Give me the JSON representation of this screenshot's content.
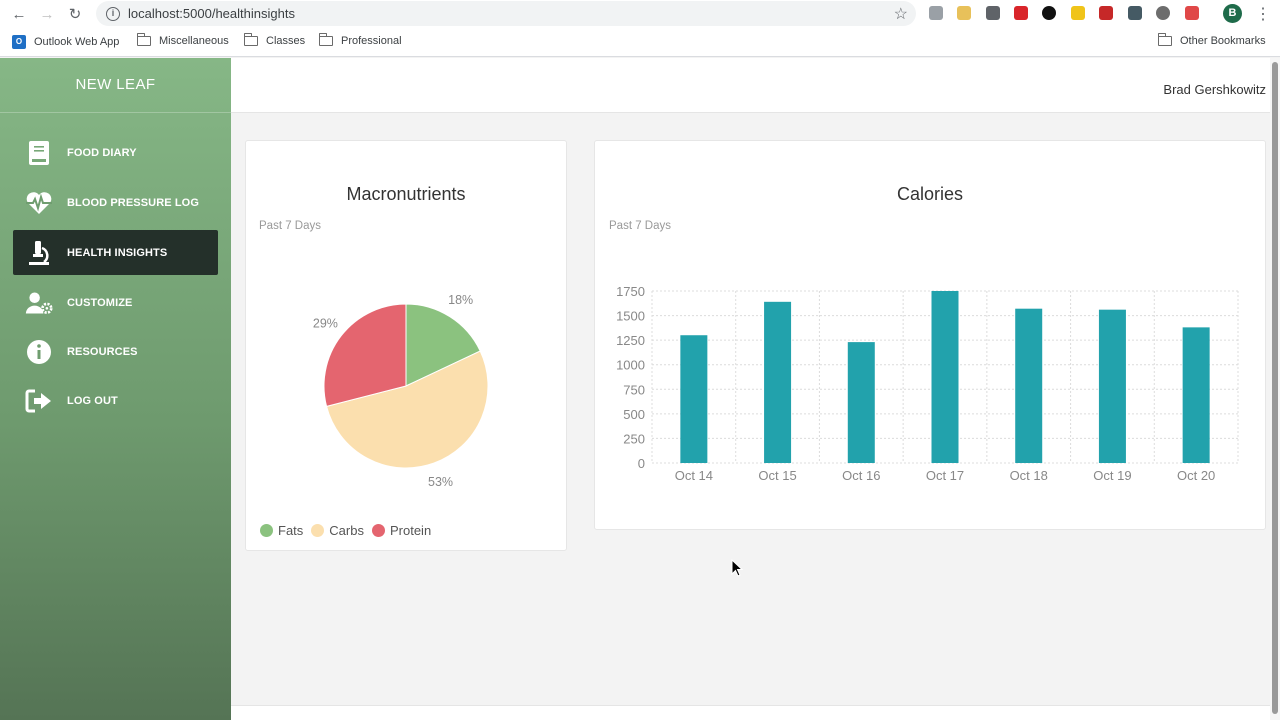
{
  "browser": {
    "url": "localhost:5000/healthinsights",
    "profile_initial": "B",
    "bookmarks": [
      "Outlook Web App",
      "Miscellaneous",
      "Classes",
      "Professional"
    ],
    "other_bookmarks": "Other Bookmarks"
  },
  "sidebar": {
    "brand": "NEW LEAF",
    "items": [
      {
        "label": "FOOD DIARY",
        "icon": "book-icon",
        "active": false
      },
      {
        "label": "BLOOD PRESSURE LOG",
        "icon": "heartbeat-icon",
        "active": false
      },
      {
        "label": "HEALTH INSIGHTS",
        "icon": "microscope-icon",
        "active": true
      },
      {
        "label": "CUSTOMIZE",
        "icon": "user-gear-icon",
        "active": false
      },
      {
        "label": "RESOURCES",
        "icon": "info-icon",
        "active": false
      },
      {
        "label": "LOG OUT",
        "icon": "sign-out-icon",
        "active": false
      }
    ]
  },
  "header": {
    "user_name": "Brad Gershkowitz"
  },
  "colors": {
    "fats": "#8bc27f",
    "carbs": "#fbdfae",
    "protein": "#e4656f",
    "calories_bar": "#22a2ac",
    "active_item": "#24302a"
  },
  "macros_card": {
    "title": "Macronutrients",
    "subtitle": "Past 7 Days"
  },
  "calories_card": {
    "title": "Calories",
    "subtitle": "Past 7 Days"
  },
  "chart_data": [
    {
      "type": "pie",
      "title": "Macronutrients",
      "subtitle": "Past 7 Days",
      "labels": [
        "Fats",
        "Carbs",
        "Protein"
      ],
      "values": [
        18,
        53,
        29
      ],
      "value_labels": [
        "18%",
        "53%",
        "29%"
      ],
      "legend": "bottom-left"
    },
    {
      "type": "bar",
      "title": "Calories",
      "subtitle": "Past 7 Days",
      "categories": [
        "Oct 14",
        "Oct 15",
        "Oct 16",
        "Oct 17",
        "Oct 18",
        "Oct 19",
        "Oct 20"
      ],
      "values": [
        1300,
        1640,
        1230,
        1750,
        1570,
        1560,
        1380
      ],
      "ylim": [
        0,
        1750
      ],
      "yticks": [
        "0",
        "250",
        "500",
        "750",
        "1000",
        "1250",
        "1500",
        "1750"
      ],
      "grid": true
    }
  ]
}
